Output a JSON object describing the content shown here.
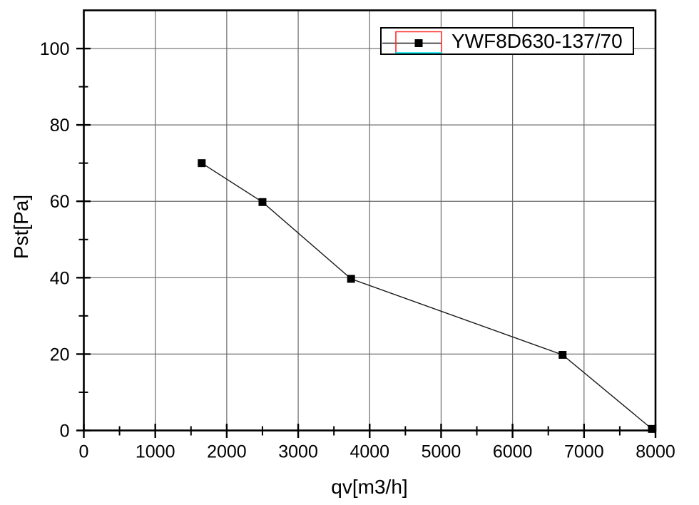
{
  "chart_data": {
    "type": "line",
    "title": "",
    "xlabel": "qv[m3/h]",
    "ylabel": "Pst[Pa]",
    "xlim": [
      0,
      8000
    ],
    "ylim": [
      0,
      110
    ],
    "x_major_ticks": [
      0,
      1000,
      2000,
      3000,
      4000,
      5000,
      6000,
      7000,
      8000
    ],
    "x_tick_labels": [
      "0",
      "1000",
      "2000",
      "3000",
      "4000",
      "5000",
      "6000",
      "7000",
      "8000"
    ],
    "x_minor_ticks": [
      500,
      1500,
      2500,
      3500,
      4500,
      5500,
      6500,
      7500
    ],
    "y_major_ticks": [
      0,
      20,
      40,
      60,
      80,
      100
    ],
    "y_tick_labels": [
      "0",
      "20",
      "40",
      "60",
      "80",
      "100"
    ],
    "y_minor_ticks": [
      10,
      30,
      50,
      70,
      90
    ],
    "grid": "major-both",
    "series": [
      {
        "name": "YWF8D630-137/70",
        "x": [
          1650,
          2500,
          3740,
          6700,
          7950
        ],
        "y": [
          70,
          59.8,
          39.7,
          19.8,
          0.4
        ],
        "line_color": "#1a1a1a",
        "marker": "filled-square",
        "marker_color": "#000000",
        "marker_size": 11
      }
    ],
    "legend": {
      "position": "top-right",
      "entries": [
        "YWF8D630-137/70"
      ],
      "selection_box_color": "#ff2a2a",
      "selection_underline_color": "#00e5ee"
    },
    "colors": {
      "background": "#ffffff",
      "grid": "#6b6b6b",
      "axis": "#000000",
      "text": "#000000"
    }
  }
}
